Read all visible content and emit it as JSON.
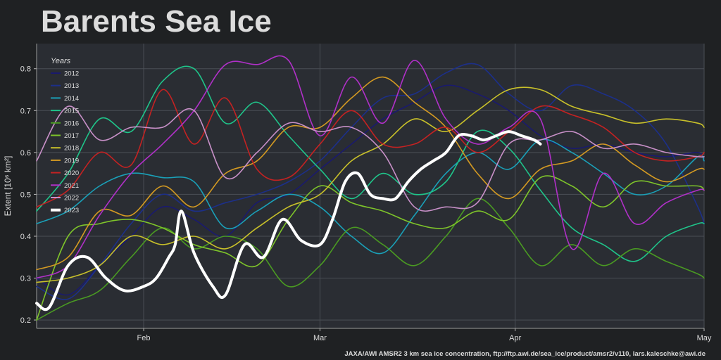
{
  "title": "Barents Sea Ice",
  "credit": "JAXA/AWI AMSR2 3 km sea ice concentration, ftp://ftp.awi.de/sea_ice/product/amsr2/v110, lars.kaleschke@awi.de",
  "chart_data": {
    "type": "line",
    "title": "Barents Sea Ice",
    "xlabel": "",
    "ylabel": "Extent [10⁶ km²]",
    "x_unit": "day of year",
    "xlim": [
      15,
      121
    ],
    "ylim": [
      0.18,
      0.86
    ],
    "yticks": [
      0.2,
      0.3,
      0.4,
      0.5,
      0.6,
      0.7,
      0.8
    ],
    "xticks": [
      {
        "label": "Feb",
        "value": 32
      },
      {
        "label": "Mar",
        "value": 60
      },
      {
        "label": "Apr",
        "value": 91
      },
      {
        "label": "May",
        "value": 121
      }
    ],
    "grid": true,
    "legend": {
      "title": "Years",
      "placement": "top-left"
    },
    "series": [
      {
        "name": "2012",
        "color": "#1a1a6e",
        "x": [
          15,
          20,
          25,
          30,
          35,
          40,
          45,
          50,
          55,
          60,
          65,
          70,
          75,
          80,
          85,
          90,
          95,
          100,
          105,
          110,
          115,
          120,
          121
        ],
        "y": [
          0.3,
          0.26,
          0.33,
          0.4,
          0.47,
          0.44,
          0.4,
          0.48,
          0.5,
          0.56,
          0.62,
          0.68,
          0.72,
          0.76,
          0.74,
          0.7,
          0.64,
          0.61,
          0.62,
          0.6,
          0.59,
          0.6,
          0.58
        ]
      },
      {
        "name": "2013",
        "color": "#1c2f8a",
        "x": [
          15,
          20,
          25,
          30,
          35,
          40,
          45,
          50,
          55,
          60,
          65,
          70,
          75,
          80,
          85,
          90,
          95,
          100,
          105,
          110,
          115,
          120,
          121
        ],
        "y": [
          0.28,
          0.25,
          0.33,
          0.43,
          0.5,
          0.46,
          0.48,
          0.5,
          0.53,
          0.58,
          0.66,
          0.73,
          0.74,
          0.79,
          0.81,
          0.74,
          0.7,
          0.76,
          0.74,
          0.7,
          0.62,
          0.47,
          0.43
        ]
      },
      {
        "name": "2014",
        "color": "#1aa0b8",
        "x": [
          15,
          20,
          25,
          30,
          35,
          40,
          45,
          50,
          55,
          60,
          65,
          70,
          75,
          80,
          85,
          90,
          95,
          100,
          105,
          110,
          115,
          120,
          121
        ],
        "y": [
          0.43,
          0.46,
          0.52,
          0.55,
          0.54,
          0.53,
          0.42,
          0.46,
          0.5,
          0.47,
          0.4,
          0.36,
          0.45,
          0.55,
          0.6,
          0.56,
          0.63,
          0.6,
          0.55,
          0.5,
          0.52,
          0.59,
          0.58
        ]
      },
      {
        "name": "2015",
        "color": "#1fc48a",
        "x": [
          15,
          20,
          25,
          30,
          35,
          40,
          45,
          50,
          55,
          60,
          65,
          70,
          75,
          80,
          85,
          90,
          95,
          100,
          105,
          110,
          115,
          120,
          121
        ],
        "y": [
          0.46,
          0.55,
          0.68,
          0.65,
          0.77,
          0.8,
          0.67,
          0.72,
          0.64,
          0.56,
          0.49,
          0.55,
          0.5,
          0.53,
          0.65,
          0.61,
          0.51,
          0.42,
          0.38,
          0.34,
          0.4,
          0.43,
          0.43
        ]
      },
      {
        "name": "2016",
        "color": "#4a9a22",
        "x": [
          15,
          20,
          25,
          30,
          35,
          40,
          45,
          50,
          55,
          60,
          65,
          70,
          75,
          80,
          85,
          90,
          95,
          100,
          105,
          110,
          115,
          120,
          121
        ],
        "y": [
          0.2,
          0.24,
          0.27,
          0.35,
          0.42,
          0.37,
          0.4,
          0.37,
          0.28,
          0.33,
          0.42,
          0.38,
          0.33,
          0.4,
          0.49,
          0.42,
          0.33,
          0.38,
          0.33,
          0.37,
          0.34,
          0.31,
          0.3
        ]
      },
      {
        "name": "2017",
        "color": "#7ec42a",
        "x": [
          15,
          20,
          25,
          30,
          35,
          40,
          45,
          50,
          55,
          60,
          65,
          70,
          75,
          80,
          85,
          90,
          95,
          100,
          105,
          110,
          115,
          120,
          121
        ],
        "y": [
          0.2,
          0.4,
          0.43,
          0.44,
          0.42,
          0.38,
          0.36,
          0.33,
          0.44,
          0.52,
          0.48,
          0.46,
          0.43,
          0.42,
          0.46,
          0.44,
          0.54,
          0.52,
          0.47,
          0.53,
          0.52,
          0.52,
          0.51
        ]
      },
      {
        "name": "2018",
        "color": "#c8c02a",
        "x": [
          15,
          20,
          25,
          30,
          35,
          40,
          45,
          50,
          55,
          60,
          65,
          70,
          75,
          80,
          85,
          90,
          95,
          100,
          105,
          110,
          115,
          120,
          121
        ],
        "y": [
          0.29,
          0.3,
          0.33,
          0.4,
          0.38,
          0.4,
          0.37,
          0.42,
          0.47,
          0.5,
          0.58,
          0.62,
          0.68,
          0.65,
          0.7,
          0.75,
          0.75,
          0.71,
          0.69,
          0.67,
          0.68,
          0.67,
          0.66
        ]
      },
      {
        "name": "2019",
        "color": "#d49a22",
        "x": [
          15,
          20,
          25,
          30,
          35,
          40,
          45,
          50,
          55,
          60,
          65,
          70,
          75,
          80,
          85,
          90,
          95,
          100,
          105,
          110,
          115,
          120,
          121
        ],
        "y": [
          0.32,
          0.35,
          0.46,
          0.45,
          0.52,
          0.47,
          0.55,
          0.58,
          0.66,
          0.66,
          0.73,
          0.78,
          0.72,
          0.66,
          0.55,
          0.49,
          0.56,
          0.58,
          0.62,
          0.57,
          0.53,
          0.56,
          0.56
        ]
      },
      {
        "name": "2020",
        "color": "#c42222",
        "x": [
          15,
          20,
          25,
          30,
          35,
          40,
          45,
          50,
          55,
          60,
          65,
          70,
          75,
          80,
          85,
          90,
          95,
          100,
          105,
          110,
          115,
          120,
          121
        ],
        "y": [
          0.47,
          0.51,
          0.6,
          0.57,
          0.75,
          0.62,
          0.73,
          0.56,
          0.54,
          0.62,
          0.7,
          0.62,
          0.62,
          0.66,
          0.6,
          0.65,
          0.71,
          0.69,
          0.66,
          0.6,
          0.58,
          0.59,
          0.6
        ]
      },
      {
        "name": "2021",
        "color": "#b030c8",
        "x": [
          15,
          20,
          25,
          30,
          35,
          40,
          45,
          50,
          55,
          60,
          65,
          70,
          75,
          80,
          85,
          90,
          95,
          100,
          105,
          110,
          115,
          120,
          121
        ],
        "y": [
          0.3,
          0.33,
          0.45,
          0.55,
          0.62,
          0.7,
          0.81,
          0.81,
          0.82,
          0.64,
          0.78,
          0.67,
          0.82,
          0.68,
          0.62,
          0.66,
          0.68,
          0.37,
          0.55,
          0.43,
          0.48,
          0.51,
          0.51
        ]
      },
      {
        "name": "2022",
        "color": "#c890c8",
        "x": [
          15,
          20,
          25,
          30,
          35,
          40,
          45,
          50,
          55,
          60,
          65,
          70,
          75,
          80,
          85,
          90,
          95,
          100,
          105,
          110,
          115,
          120,
          121
        ],
        "y": [
          0.58,
          0.71,
          0.63,
          0.66,
          0.66,
          0.7,
          0.54,
          0.6,
          0.67,
          0.65,
          0.66,
          0.6,
          0.47,
          0.47,
          0.48,
          0.62,
          0.63,
          0.65,
          0.61,
          0.62,
          0.6,
          0.59,
          0.59
        ]
      },
      {
        "name": "2023",
        "color": "#ffffff",
        "bold": true,
        "x": [
          15,
          17,
          20,
          23,
          26,
          29,
          32,
          34,
          36,
          37,
          38,
          40,
          43,
          45,
          48,
          51,
          54,
          57,
          60,
          62,
          64,
          66,
          68,
          70,
          72,
          74,
          76,
          78,
          80,
          82,
          84,
          86,
          88,
          90,
          92,
          94,
          95
        ],
        "y": [
          0.24,
          0.23,
          0.33,
          0.35,
          0.3,
          0.27,
          0.28,
          0.3,
          0.35,
          0.38,
          0.46,
          0.36,
          0.28,
          0.26,
          0.38,
          0.35,
          0.44,
          0.39,
          0.38,
          0.44,
          0.53,
          0.55,
          0.5,
          0.49,
          0.49,
          0.53,
          0.56,
          0.58,
          0.6,
          0.64,
          0.64,
          0.63,
          0.64,
          0.65,
          0.64,
          0.63,
          0.62
        ]
      }
    ]
  }
}
